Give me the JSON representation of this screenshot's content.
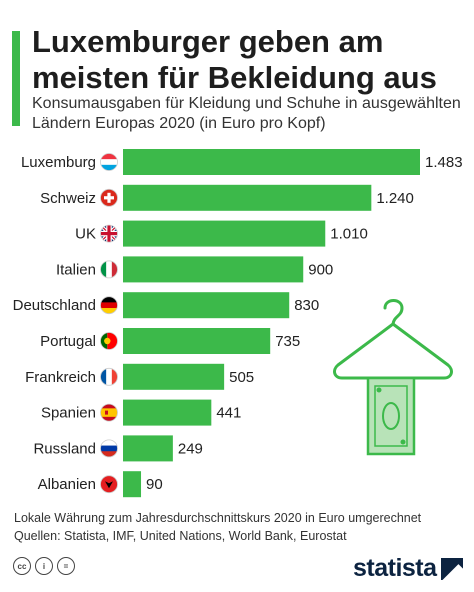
{
  "title": "Luxemburger geben am meisten für Bekleidung aus",
  "subtitle": "Konsumausgaben für Kleidung und Schuhe in ausgewählten Ländern Europas 2020 (in Euro pro Kopf)",
  "footer": {
    "note": "Lokale Währung zum Jahresdurchschnittskurs 2020 in Euro umgerechnet",
    "sources": "Quellen: Statista, IMF, United Nations, World Bank, Eurostat"
  },
  "license_icons": [
    "cc-icon",
    "attribution-icon",
    "no-derivatives-icon"
  ],
  "logo": {
    "text": "statista"
  },
  "colors": {
    "bar": "#3cb94a",
    "accent": "#3cb94a",
    "text": "#222222",
    "logo": "#0c2340"
  },
  "chart_data": {
    "type": "bar",
    "orientation": "horizontal",
    "categories": [
      "Luxemburg",
      "Schweiz",
      "UK",
      "Italien",
      "Deutschland",
      "Portugal",
      "Frankreich",
      "Spanien",
      "Russland",
      "Albanien"
    ],
    "flags": [
      "luxembourg-flag-icon",
      "switzerland-flag-icon",
      "uk-flag-icon",
      "italy-flag-icon",
      "germany-flag-icon",
      "portugal-flag-icon",
      "france-flag-icon",
      "spain-flag-icon",
      "russia-flag-icon",
      "albania-flag-icon"
    ],
    "values": [
      1483,
      1240,
      1010,
      900,
      830,
      735,
      505,
      441,
      249,
      90
    ],
    "value_labels": [
      "1.483",
      "1.240",
      "1.010",
      "900",
      "830",
      "735",
      "505",
      "441",
      "249",
      "90"
    ],
    "xlim": [
      0,
      1483
    ],
    "grid": false,
    "illustration": "clothes-hanger-with-banknote-icon"
  }
}
